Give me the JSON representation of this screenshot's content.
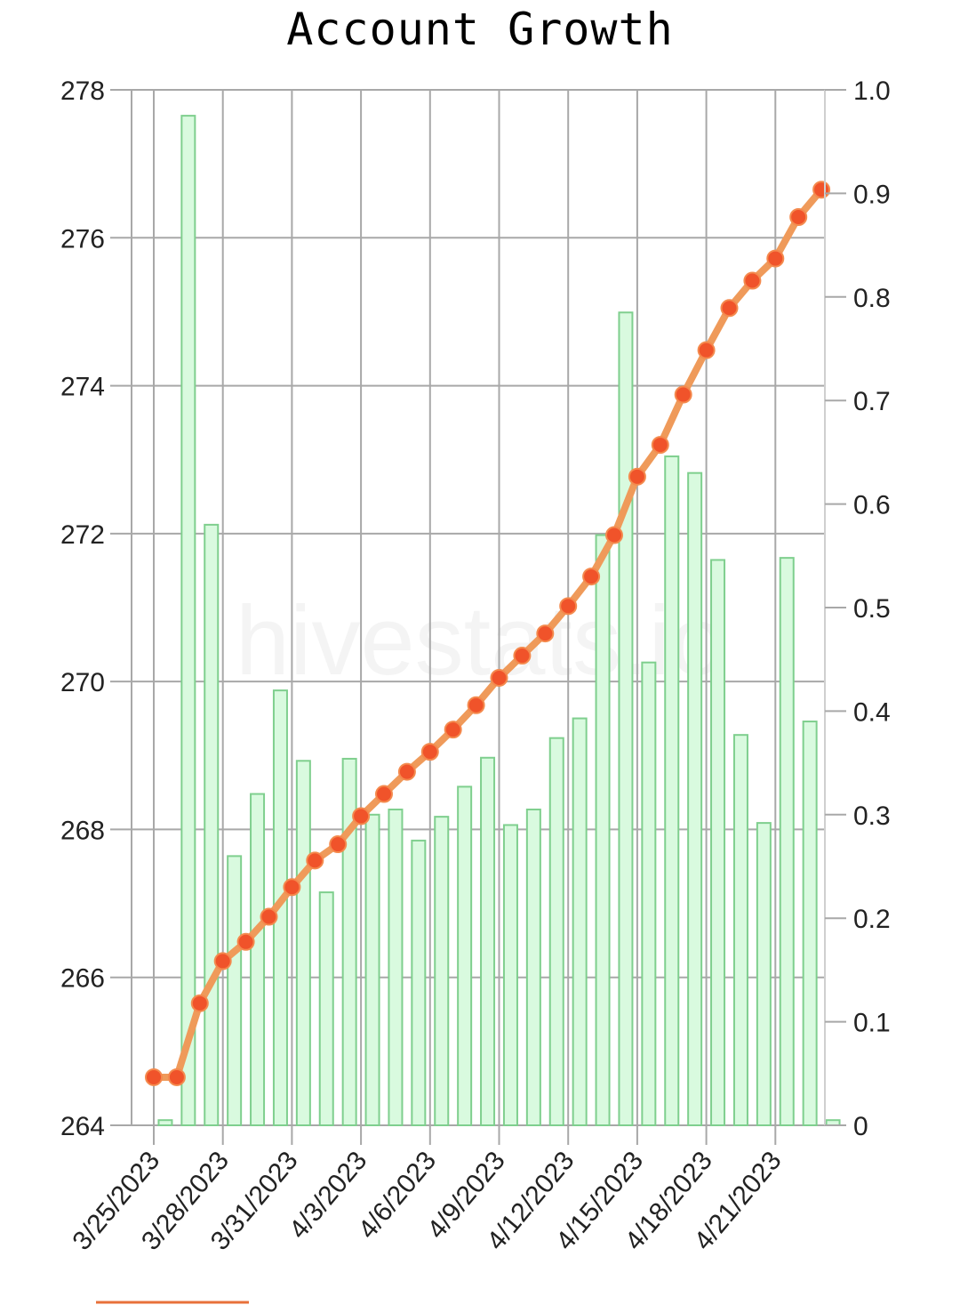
{
  "chart_data": {
    "type": "bar",
    "title": "Account Growth",
    "watermark": "hivestats.io",
    "x_tick_labels": [
      "3/25/2023",
      "3/28/2023",
      "3/31/2023",
      "4/3/2023",
      "4/6/2023",
      "4/9/2023",
      "4/12/2023",
      "4/15/2023",
      "4/18/2023",
      "4/21/2023"
    ],
    "x": [
      "3/25/2023",
      "3/26/2023",
      "3/27/2023",
      "3/28/2023",
      "3/29/2023",
      "3/30/2023",
      "3/31/2023",
      "4/1/2023",
      "4/2/2023",
      "4/3/2023",
      "4/4/2023",
      "4/5/2023",
      "4/6/2023",
      "4/7/2023",
      "4/8/2023",
      "4/9/2023",
      "4/10/2023",
      "4/11/2023",
      "4/12/2023",
      "4/13/2023",
      "4/14/2023",
      "4/15/2023",
      "4/16/2023",
      "4/17/2023",
      "4/18/2023",
      "4/19/2023",
      "4/20/2023",
      "4/21/2023",
      "4/22/2023",
      "4/23/2023"
    ],
    "left_axis": {
      "ylim": [
        264,
        278
      ],
      "ticks": [
        "264",
        "266",
        "268",
        "270",
        "272",
        "274",
        "276",
        "278"
      ]
    },
    "right_axis": {
      "ylim": [
        0,
        1.0
      ],
      "ticks": [
        "0",
        "0.1",
        "0.2",
        "0.3",
        "0.4",
        "0.5",
        "0.6",
        "0.7",
        "0.8",
        "0.9",
        "1.0"
      ]
    },
    "series": [
      {
        "type": "bar",
        "axis": "right",
        "color_fill": "#d9fadf",
        "color_stroke": "#7fcf8e",
        "values": [
          0.005,
          0.975,
          0.58,
          0.26,
          0.32,
          0.42,
          0.352,
          0.225,
          0.354,
          0.3,
          0.305,
          0.275,
          0.298,
          0.327,
          0.355,
          0.29,
          0.305,
          0.374,
          0.393,
          0.57,
          0.785,
          0.447,
          0.646,
          0.63,
          0.546,
          0.377,
          0.292,
          0.548,
          0.39,
          0.005
        ]
      },
      {
        "type": "line",
        "axis": "left",
        "color_line": "#ef9a5a",
        "color_point": "#f0532a",
        "values": [
          264.65,
          264.65,
          265.65,
          266.22,
          266.48,
          266.82,
          267.22,
          267.58,
          267.8,
          268.18,
          268.48,
          268.78,
          269.05,
          269.35,
          269.68,
          270.05,
          270.35,
          270.65,
          271.02,
          271.42,
          271.98,
          272.77,
          273.2,
          273.88,
          274.48,
          275.05,
          275.42,
          275.72,
          276.28,
          276.65
        ]
      }
    ],
    "grid": true
  }
}
